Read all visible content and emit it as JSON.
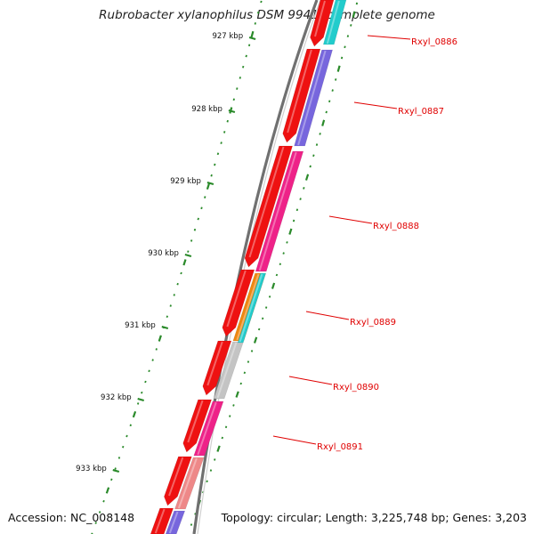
{
  "title": "Rubrobacter xylanophilus DSM 9941, complete genome",
  "accession": "Accession: NC_008148",
  "topology": "Topology: circular; Length: 3,225,748 bp; Genes: 3,203",
  "colors": {
    "forward_strand": "#ee1111",
    "backbone": "#707070",
    "tick": "#2a8a2a",
    "label": "#e00000",
    "cyan": "#22cccc",
    "purple": "#7766dd",
    "pink": "#ee2288",
    "orange": "#ee8811",
    "grey": "#c4c4c4",
    "salmon": "#ee8888"
  },
  "kbp_ticks": [
    {
      "value": 927,
      "label": "927 kbp"
    },
    {
      "value": 928,
      "label": "928 kbp"
    },
    {
      "value": 929,
      "label": "929 kbp"
    },
    {
      "value": 930,
      "label": "930 kbp"
    },
    {
      "value": 931,
      "label": "931 kbp"
    },
    {
      "value": 932,
      "label": "932 kbp"
    },
    {
      "value": 933,
      "label": "933 kbp"
    }
  ],
  "genes": [
    {
      "label": "Rxyl_0886"
    },
    {
      "label": "Rxyl_0887"
    },
    {
      "label": "Rxyl_0888"
    },
    {
      "label": "Rxyl_0889"
    },
    {
      "label": "Rxyl_0890"
    },
    {
      "label": "Rxyl_0891"
    }
  ]
}
